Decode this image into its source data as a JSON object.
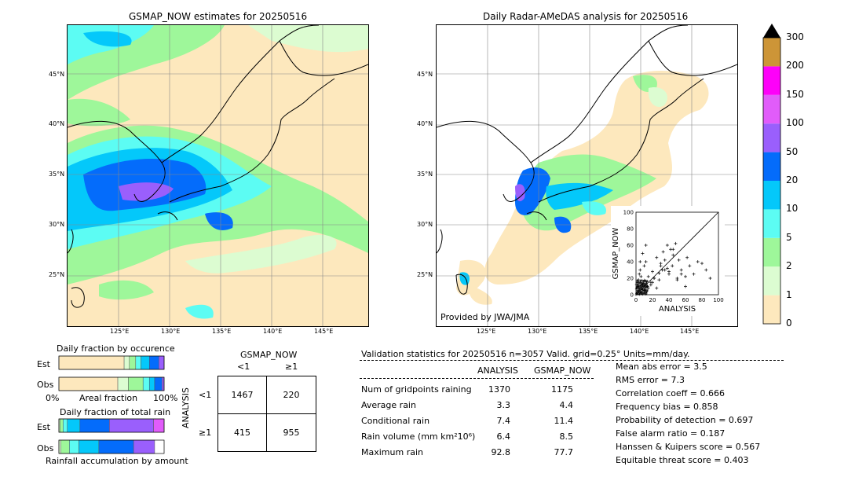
{
  "left_map": {
    "title": "GSMAP_NOW estimates for 20250516",
    "lat_labels": [
      "45°N",
      "40°N",
      "35°N",
      "30°N",
      "25°N"
    ],
    "lon_labels": [
      "125°E",
      "130°E",
      "135°E",
      "140°E",
      "145°E"
    ]
  },
  "right_map": {
    "title": "Daily Radar-AMeDAS analysis for 20250516",
    "lat_labels": [
      "45°N",
      "40°N",
      "35°N",
      "30°N",
      "25°N"
    ],
    "lon_labels": [
      "125°E",
      "130°E",
      "135°E",
      "140°E",
      "145°E"
    ],
    "credit": "Provided by JWA/JMA"
  },
  "colorbar": {
    "levels": [
      "0",
      "1",
      "2",
      "5",
      "10",
      "20",
      "50",
      "100",
      "150",
      "200",
      "300"
    ],
    "colors": [
      "#fde8bd",
      "#dcfcd1",
      "#9ef79a",
      "#5cfcf3",
      "#04c8fa",
      "#046cfb",
      "#9a5ffc",
      "#e15cfa",
      "#fd01f9",
      "#cd9537",
      "#000000"
    ]
  },
  "scatter": {
    "xlabel": "ANALYSIS",
    "ylabel": "GSMAP_NOW",
    "ticks": [
      "0",
      "20",
      "40",
      "60",
      "80",
      "100"
    ]
  },
  "occurrence": {
    "title": "Daily fraction by occurence",
    "rows": [
      "Est",
      "Obs"
    ],
    "axis_left": "0%",
    "axis_mid": "Areal fraction",
    "axis_right": "100%"
  },
  "total_rain": {
    "title": "Daily fraction of total rain",
    "rows": [
      "Est",
      "Obs"
    ],
    "footer": "Rainfall accumulation by amount"
  },
  "contingency": {
    "col_title": "GSMAP_NOW",
    "col_lt": "<1",
    "col_ge": "≥1",
    "row_title": "ANALYSIS",
    "row_lt": "<1",
    "row_ge": "≥1",
    "a": "1467",
    "b": "220",
    "c": "415",
    "d": "955"
  },
  "validation": {
    "header": "Validation statistics for 20250516  n=3057 Valid. grid=0.25° Units=mm/day.",
    "col1": "ANALYSIS",
    "col2": "GSMAP_NOW",
    "rows": [
      {
        "label": "Num of gridpoints raining",
        "v1": "1370",
        "v2": "1175"
      },
      {
        "label": "Average rain",
        "v1": "3.3",
        "v2": "4.4"
      },
      {
        "label": "Conditional rain",
        "v1": "7.4",
        "v2": "11.4"
      },
      {
        "label": "Rain volume (mm km²10⁶)",
        "v1": "6.4",
        "v2": "8.5"
      },
      {
        "label": "Maximum rain",
        "v1": "92.8",
        "v2": "77.7"
      }
    ],
    "scores": [
      "Mean abs error =    3.5",
      "RMS error =    7.3",
      "Correlation coeff =  0.666",
      "Frequency bias =  0.858",
      "Probability of detection =  0.697",
      "False alarm ratio =  0.187",
      "Hanssen & Kuipers score =  0.567",
      "Equitable threat score =  0.403"
    ]
  },
  "chart_data": [
    {
      "type": "scatter",
      "title": "",
      "xlabel": "ANALYSIS",
      "ylabel": "GSMAP_NOW",
      "xlim": [
        0,
        100
      ],
      "ylim": [
        0,
        100
      ],
      "x": [
        2,
        3,
        4,
        5,
        6,
        8,
        10,
        12,
        15,
        18,
        20,
        22,
        25,
        28,
        30,
        33,
        35,
        38,
        40,
        42,
        45,
        48,
        50,
        55,
        60,
        62,
        65,
        70,
        75,
        80,
        85,
        90,
        3,
        5,
        8,
        12,
        15,
        20,
        25,
        30,
        35,
        40,
        45,
        50,
        55,
        60,
        6,
        10,
        14,
        18,
        22,
        28,
        32,
        38,
        44,
        52
      ],
      "y": [
        10,
        18,
        25,
        30,
        22,
        12,
        35,
        40,
        8,
        15,
        28,
        20,
        45,
        18,
        38,
        52,
        30,
        60,
        25,
        55,
        48,
        62,
        20,
        30,
        10,
        45,
        35,
        25,
        40,
        38,
        30,
        20,
        5,
        40,
        50,
        60,
        22,
        15,
        8,
        35,
        42,
        28,
        55,
        18,
        25,
        22,
        2,
        5,
        10,
        12,
        20,
        26,
        30,
        32,
        35,
        42
      ],
      "note": "Dense cluster of points near origin (0-15 on both axes); diagonal reference line from (0,0) to (100,100)."
    },
    {
      "type": "bar",
      "title": "Daily fraction by occurence",
      "categories": [
        "Est",
        "Obs"
      ],
      "series": [
        {
          "name": "0",
          "values": [
            0.62,
            0.56
          ]
        },
        {
          "name": "1",
          "values": [
            0.05,
            0.1
          ]
        },
        {
          "name": "2",
          "values": [
            0.06,
            0.14
          ]
        },
        {
          "name": "5",
          "values": [
            0.05,
            0.06
          ]
        },
        {
          "name": "10",
          "values": [
            0.08,
            0.05
          ]
        },
        {
          "name": "20",
          "values": [
            0.09,
            0.07
          ]
        },
        {
          "name": "50",
          "values": [
            0.05,
            0.02
          ]
        }
      ]
    },
    {
      "type": "bar",
      "title": "Daily fraction of total rain",
      "categories": [
        "Est",
        "Obs"
      ],
      "series": [
        {
          "name": "1",
          "values": [
            0.01,
            0.02
          ]
        },
        {
          "name": "2",
          "values": [
            0.03,
            0.08
          ]
        },
        {
          "name": "5",
          "values": [
            0.04,
            0.09
          ]
        },
        {
          "name": "10",
          "values": [
            0.12,
            0.19
          ]
        },
        {
          "name": "20",
          "values": [
            0.28,
            0.33
          ]
        },
        {
          "name": "50",
          "values": [
            0.42,
            0.2
          ]
        },
        {
          "name": "100",
          "values": [
            0.1,
            0.0
          ]
        }
      ]
    }
  ]
}
